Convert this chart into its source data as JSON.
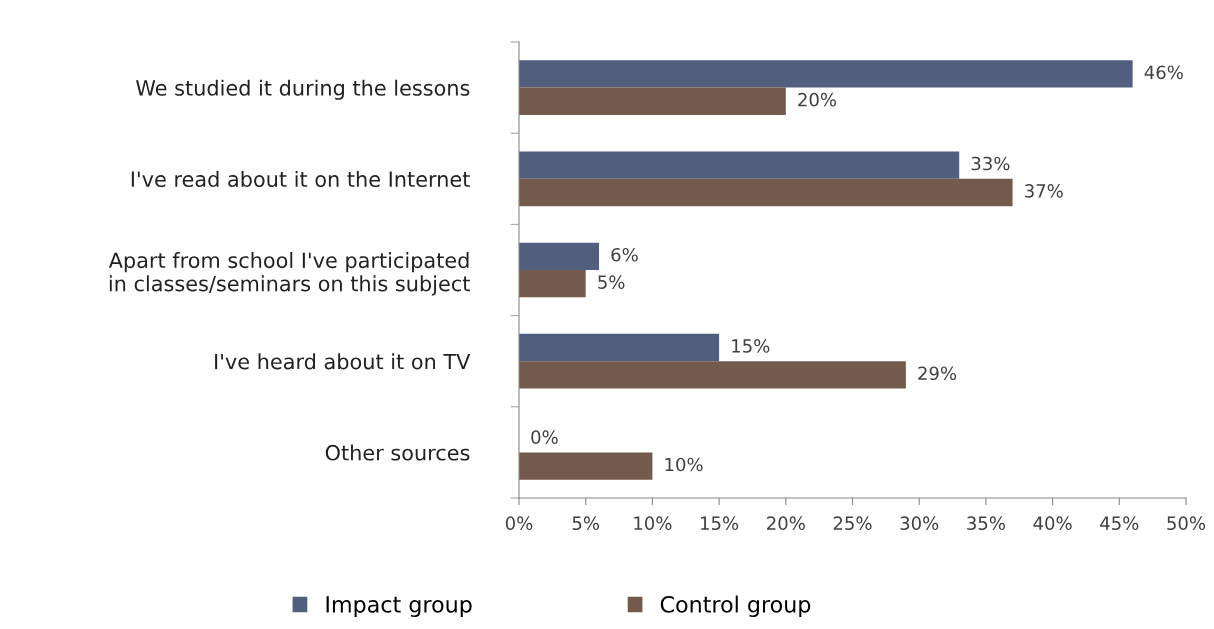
{
  "chart_data": {
    "type": "bar",
    "orientation": "horizontal",
    "categories": [
      "We studied it during the lessons",
      "I've read about it on the Internet",
      "Apart from school I've participated\nin classes/seminars on this subject",
      "I've heard about it on TV",
      "Other sources"
    ],
    "series": [
      {
        "name": "Impact group",
        "color": "#525e7e",
        "values": [
          46,
          33,
          6,
          15,
          0
        ],
        "value_labels": [
          "46%",
          "33%",
          "6%",
          "15%",
          "0%"
        ]
      },
      {
        "name": "Control group",
        "color": "#735a4d",
        "values": [
          20,
          37,
          5,
          29,
          10
        ],
        "value_labels": [
          "20%",
          "37%",
          "5%",
          "29%",
          "10%"
        ]
      }
    ],
    "xlim": [
      0,
      50
    ],
    "xticks": [
      {
        "value": 0,
        "label": "0%"
      },
      {
        "value": 5,
        "label": "5%"
      },
      {
        "value": 10,
        "label": "10%"
      },
      {
        "value": 15,
        "label": "15%"
      },
      {
        "value": 20,
        "label": "20%"
      },
      {
        "value": 25,
        "label": "25%"
      },
      {
        "value": 30,
        "label": "30%"
      },
      {
        "value": 35,
        "label": "35%"
      },
      {
        "value": 40,
        "label": "40%"
      },
      {
        "value": 45,
        "label": "45%"
      },
      {
        "value": 50,
        "label": "50%"
      }
    ],
    "legend": "bottom",
    "grid": false
  }
}
